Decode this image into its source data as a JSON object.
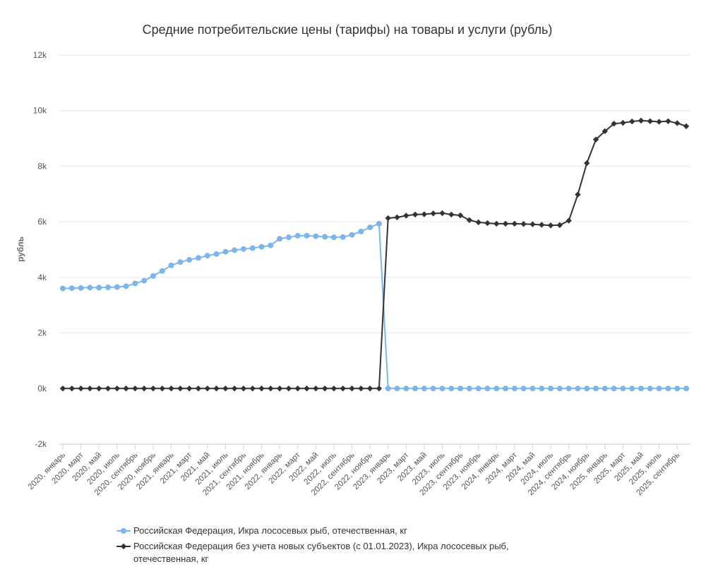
{
  "chart_data": {
    "type": "line",
    "title": "Средние потребительские цены (тарифы) на товары и услуги (рубль)",
    "xlabel": "",
    "ylabel": "рубль",
    "ylim": [
      -2000,
      12000
    ],
    "yticks": [
      -2000,
      0,
      2000,
      4000,
      6000,
      8000,
      10000,
      12000
    ],
    "ytick_labels": [
      "-2k",
      "0k",
      "2k",
      "4k",
      "6k",
      "8k",
      "10k",
      "12k"
    ],
    "grid": true,
    "legend_position": "bottom",
    "categories": [
      "2020, январь",
      "2020, февраль",
      "2020, март",
      "2020, апрель",
      "2020, май",
      "2020, июнь",
      "2020, июль",
      "2020, август",
      "2020, сентябрь",
      "2020, октябрь",
      "2020, ноябрь",
      "2020, декабрь",
      "2021, январь",
      "2021, февраль",
      "2021, март",
      "2021, апрель",
      "2021, май",
      "2021, июнь",
      "2021, июль",
      "2021, август",
      "2021, сентябрь",
      "2021, октябрь",
      "2021, ноябрь",
      "2021, декабрь",
      "2022, январь",
      "2022, февраль",
      "2022, март",
      "2022, апрель",
      "2022, май",
      "2022, июнь",
      "2022, июль",
      "2022, август",
      "2022, сентябрь",
      "2022, октябрь",
      "2022, ноябрь",
      "2022, декабрь",
      "2023, январь",
      "2023, февраль",
      "2023, март",
      "2023, апрель",
      "2023, май",
      "2023, июнь",
      "2023, июль",
      "2023, август",
      "2023, сентябрь",
      "2023, октябрь",
      "2023, ноябрь",
      "2023, декабрь",
      "2024, январь",
      "2024, февраль",
      "2024, март",
      "2024, апрель",
      "2024, май",
      "2024, июнь",
      "2024, июль",
      "2024, август",
      "2024, сентябрь",
      "2024, октябрь",
      "2024, ноябрь",
      "2024, декабрь",
      "2025, январь",
      "2025, февраль",
      "2025, март",
      "2025, апрель",
      "2025, май",
      "2025, июнь",
      "2025, июль",
      "2025, август",
      "2025, сентябрь",
      "2025, октябрь"
    ],
    "xtick_labels": [
      "2020, январь",
      "2020, март",
      "2020, май",
      "2020, июль",
      "2020, сентябрь",
      "2020, ноябрь",
      "2021, январь",
      "2021, март",
      "2021, май",
      "2021, июль",
      "2021, сентябрь",
      "2021, ноябрь",
      "2022, январь",
      "2022, март",
      "2022, май",
      "2022, июль",
      "2022, сентябрь",
      "2022, ноябрь",
      "2023, январь",
      "2023, март",
      "2023, май",
      "2023, июль",
      "2023, сентябрь",
      "2023, ноябрь",
      "2024, январь",
      "2024, март",
      "2024, май",
      "2024, июль",
      "2024, сентябрь",
      "2024, ноябрь",
      "2025, январь",
      "2025, март",
      "2025, май",
      "2025, июль",
      "2025, сентябрь"
    ],
    "series": [
      {
        "name": "Российская Федерация, Икра лососевых рыб, отечественная, кг",
        "color": "#7cb5ec",
        "marker": "circle",
        "values": [
          3600,
          3610,
          3620,
          3630,
          3630,
          3640,
          3650,
          3680,
          3780,
          3880,
          4050,
          4230,
          4430,
          4550,
          4630,
          4700,
          4780,
          4840,
          4920,
          4980,
          5020,
          5050,
          5100,
          5150,
          5390,
          5440,
          5500,
          5500,
          5480,
          5460,
          5440,
          5450,
          5530,
          5650,
          5800,
          5930,
          0,
          0,
          0,
          0,
          0,
          0,
          0,
          0,
          0,
          0,
          0,
          0,
          0,
          0,
          0,
          0,
          0,
          0,
          0,
          0,
          0,
          0,
          0,
          0,
          0,
          0,
          0,
          0,
          0,
          0,
          0,
          0,
          0,
          0
        ]
      },
      {
        "name": "Российская Федерация без учета новых субъектов (с 01.01.2023), Икра лососевых рыб, отечественная, кг",
        "color": "#333333",
        "marker": "diamond",
        "values": [
          0,
          0,
          0,
          0,
          0,
          0,
          0,
          0,
          0,
          0,
          0,
          0,
          0,
          0,
          0,
          0,
          0,
          0,
          0,
          0,
          0,
          0,
          0,
          0,
          0,
          0,
          0,
          0,
          0,
          0,
          0,
          0,
          0,
          0,
          0,
          0,
          6130,
          6160,
          6220,
          6260,
          6270,
          6300,
          6310,
          6260,
          6230,
          6060,
          5980,
          5950,
          5930,
          5930,
          5930,
          5920,
          5910,
          5890,
          5870,
          5880,
          6040,
          6980,
          8110,
          8960,
          9260,
          9530,
          9560,
          9610,
          9640,
          9620,
          9600,
          9620,
          9550,
          9440
        ]
      }
    ],
    "legend": [
      "Российская Федерация, Икра лососевых рыб, отечественная, кг",
      "Российская Федерация без учета новых субъектов (с 01.01.2023), Икра лососевых рыб, отечественная, кг"
    ],
    "legend_lines": [
      [
        "Российская Федерация, Икра лососевых рыб, отечественная, кг"
      ],
      [
        "Российская Федерация без учета новых субъектов (с 01.01.2023), Икра лососевых рыб,",
        "отечественная, кг"
      ]
    ]
  }
}
